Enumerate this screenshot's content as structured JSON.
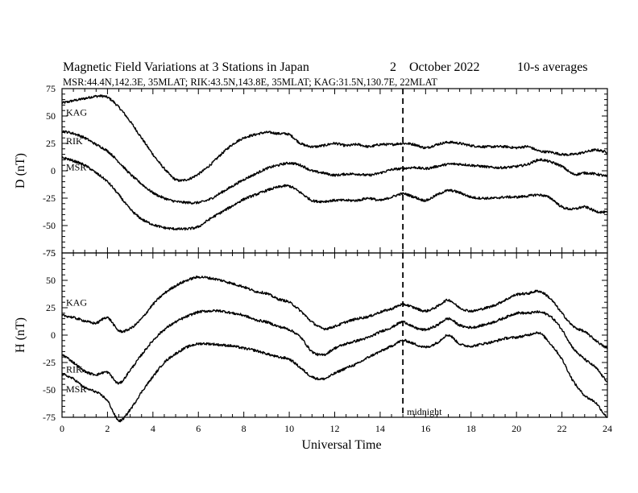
{
  "header": {
    "title": "Magnetic Field Variations at 3 Stations in Japan",
    "date_day": "2",
    "date_month_year": "October 2022",
    "averaging": "10-s averages",
    "stations_line": "MSR:44.4N,142.3E, 35MLAT;  RIK:43.5N,143.8E, 35MLAT;  KAG:31.5N,130.7E, 22MLAT"
  },
  "chart_data": [
    {
      "type": "line",
      "panel": "D",
      "ylabel": "D (nT)",
      "xlabel": "",
      "xlim": [
        0,
        24
      ],
      "ylim": [
        -75,
        75
      ],
      "yticks": [
        "75",
        "50",
        "25",
        "0",
        "-25",
        "-50",
        "-75"
      ],
      "grid": false,
      "series": [
        {
          "name": "KAG",
          "x": [
            0,
            0.5,
            1,
            1.5,
            2,
            2.5,
            3,
            3.5,
            4,
            4.5,
            5,
            5.5,
            6,
            6.5,
            7,
            7.5,
            8,
            8.5,
            9,
            9.5,
            10,
            10.5,
            11,
            11.5,
            12,
            12.5,
            13,
            13.5,
            14,
            14.5,
            15,
            15.5,
            16,
            16.5,
            17,
            17.5,
            18,
            18.5,
            19,
            19.5,
            20,
            20.5,
            21,
            21.5,
            22,
            22.5,
            23,
            23.5,
            24
          ],
          "y": [
            62,
            64,
            66,
            68,
            67,
            58,
            45,
            30,
            15,
            2,
            -8,
            -8,
            -3,
            5,
            15,
            24,
            30,
            33,
            35,
            34,
            33,
            25,
            22,
            23,
            25,
            23,
            24,
            22,
            24,
            24,
            25,
            24,
            21,
            24,
            26,
            25,
            23,
            22,
            22,
            22,
            21,
            22,
            18,
            17,
            15,
            15,
            17,
            19,
            17
          ]
        },
        {
          "name": "RIK",
          "x": [
            0,
            0.5,
            1,
            1.5,
            2,
            2.5,
            3,
            3.5,
            4,
            4.5,
            5,
            5.5,
            6,
            6.5,
            7,
            7.5,
            8,
            8.5,
            9,
            9.5,
            10,
            10.5,
            11,
            11.5,
            12,
            12.5,
            13,
            13.5,
            14,
            14.5,
            15,
            15.5,
            16,
            16.5,
            17,
            17.5,
            18,
            18.5,
            19,
            19.5,
            20,
            20.5,
            21,
            21.5,
            22,
            22.5,
            23,
            23.5,
            24
          ],
          "y": [
            36,
            34,
            30,
            24,
            18,
            8,
            -3,
            -12,
            -20,
            -25,
            -28,
            -29,
            -29,
            -26,
            -20,
            -14,
            -8,
            -3,
            2,
            5,
            7,
            5,
            0,
            -2,
            -4,
            -3,
            -3,
            -4,
            -2,
            1,
            2,
            3,
            2,
            4,
            6,
            6,
            5,
            4,
            3,
            3,
            4,
            6,
            10,
            8,
            4,
            -3,
            -2,
            -3,
            -5
          ]
        },
        {
          "name": "MSR",
          "x": [
            0,
            0.5,
            1,
            1.5,
            2,
            2.5,
            3,
            3.5,
            4,
            4.5,
            5,
            5.5,
            6,
            6.5,
            7,
            7.5,
            8,
            8.5,
            9,
            9.5,
            10,
            10.5,
            11,
            11.5,
            12,
            12.5,
            13,
            13.5,
            14,
            14.5,
            15,
            15.5,
            16,
            16.5,
            17,
            17.5,
            18,
            18.5,
            19,
            19.5,
            20,
            20.5,
            21,
            21.5,
            22,
            22.5,
            23,
            23.5,
            24
          ],
          "y": [
            12,
            9,
            5,
            -2,
            -10,
            -22,
            -35,
            -44,
            -49,
            -52,
            -53,
            -53,
            -51,
            -44,
            -38,
            -32,
            -26,
            -22,
            -18,
            -15,
            -14,
            -20,
            -27,
            -28,
            -27,
            -27,
            -27,
            -25,
            -27,
            -24,
            -21,
            -24,
            -27,
            -22,
            -18,
            -20,
            -24,
            -25,
            -25,
            -24,
            -24,
            -23,
            -22,
            -25,
            -33,
            -35,
            -33,
            -37,
            -38
          ]
        }
      ]
    },
    {
      "type": "line",
      "panel": "H",
      "ylabel": "H (nT)",
      "xlabel": "Universal Time",
      "xlim": [
        0,
        24
      ],
      "ylim": [
        -75,
        75
      ],
      "xticks": [
        "0",
        "2",
        "4",
        "6",
        "8",
        "10",
        "12",
        "14",
        "16",
        "18",
        "20",
        "22",
        "24"
      ],
      "yticks": [
        "75",
        "50",
        "25",
        "0",
        "-25",
        "-50",
        "-75"
      ],
      "grid": false,
      "series": [
        {
          "name": "KAG",
          "x": [
            0,
            0.5,
            1,
            1.5,
            2,
            2.5,
            3,
            3.5,
            4,
            4.5,
            5,
            5.5,
            6,
            6.5,
            7,
            7.5,
            8,
            8.5,
            9,
            9.5,
            10,
            10.5,
            11,
            11.5,
            12,
            12.5,
            13,
            13.5,
            14,
            14.5,
            15,
            15.5,
            16,
            16.5,
            17,
            17.5,
            18,
            18.5,
            19,
            19.5,
            20,
            20.5,
            21,
            21.5,
            22,
            22.5,
            23,
            23.5,
            24
          ],
          "y": [
            18,
            16,
            13,
            11,
            16,
            4,
            6,
            15,
            28,
            38,
            45,
            50,
            53,
            52,
            50,
            47,
            44,
            40,
            38,
            33,
            30,
            22,
            12,
            6,
            8,
            12,
            15,
            17,
            21,
            24,
            28,
            25,
            22,
            26,
            32,
            25,
            22,
            24,
            27,
            32,
            37,
            38,
            40,
            33,
            20,
            8,
            3,
            -5,
            -12
          ]
        },
        {
          "name": "RIK",
          "x": [
            0,
            0.5,
            1,
            1.5,
            2,
            2.5,
            3,
            3.5,
            4,
            4.5,
            5,
            5.5,
            6,
            6.5,
            7,
            7.5,
            8,
            8.5,
            9,
            9.5,
            10,
            10.5,
            11,
            11.5,
            12,
            12.5,
            13,
            13.5,
            14,
            14.5,
            15,
            15.5,
            16,
            16.5,
            17,
            17.5,
            18,
            18.5,
            19,
            19.5,
            20,
            20.5,
            21,
            21.5,
            22,
            22.5,
            23,
            23.5,
            24
          ],
          "y": [
            -18,
            -25,
            -33,
            -36,
            -34,
            -44,
            -32,
            -18,
            -5,
            5,
            12,
            17,
            21,
            22,
            22,
            20,
            18,
            14,
            12,
            8,
            5,
            -2,
            -15,
            -18,
            -12,
            -8,
            -5,
            -2,
            3,
            7,
            12,
            7,
            5,
            9,
            15,
            9,
            7,
            9,
            12,
            16,
            20,
            20,
            21,
            17,
            5,
            -12,
            -22,
            -30,
            -42
          ]
        },
        {
          "name": "MSR",
          "x": [
            0,
            0.5,
            1,
            1.5,
            2,
            2.5,
            3,
            3.5,
            4,
            4.5,
            5,
            5.5,
            6,
            6.5,
            7,
            7.5,
            8,
            8.5,
            9,
            9.5,
            10,
            10.5,
            11,
            11.5,
            12,
            12.5,
            13,
            13.5,
            14,
            14.5,
            15,
            15.5,
            16,
            16.5,
            17,
            17.5,
            18,
            18.5,
            19,
            19.5,
            20,
            20.5,
            21,
            21.5,
            22,
            22.5,
            23,
            23.5,
            24
          ],
          "y": [
            -36,
            -40,
            -48,
            -52,
            -60,
            -78,
            -68,
            -52,
            -38,
            -25,
            -17,
            -11,
            -8,
            -8,
            -9,
            -10,
            -12,
            -14,
            -17,
            -20,
            -22,
            -30,
            -38,
            -40,
            -35,
            -30,
            -26,
            -20,
            -15,
            -10,
            -5,
            -8,
            -11,
            -7,
            0,
            -8,
            -10,
            -8,
            -6,
            -3,
            -2,
            0,
            2,
            -8,
            -22,
            -42,
            -55,
            -62,
            -75
          ]
        }
      ]
    }
  ],
  "annotations": {
    "midnight_marker_ut": 15,
    "midnight_label": "midnight"
  }
}
